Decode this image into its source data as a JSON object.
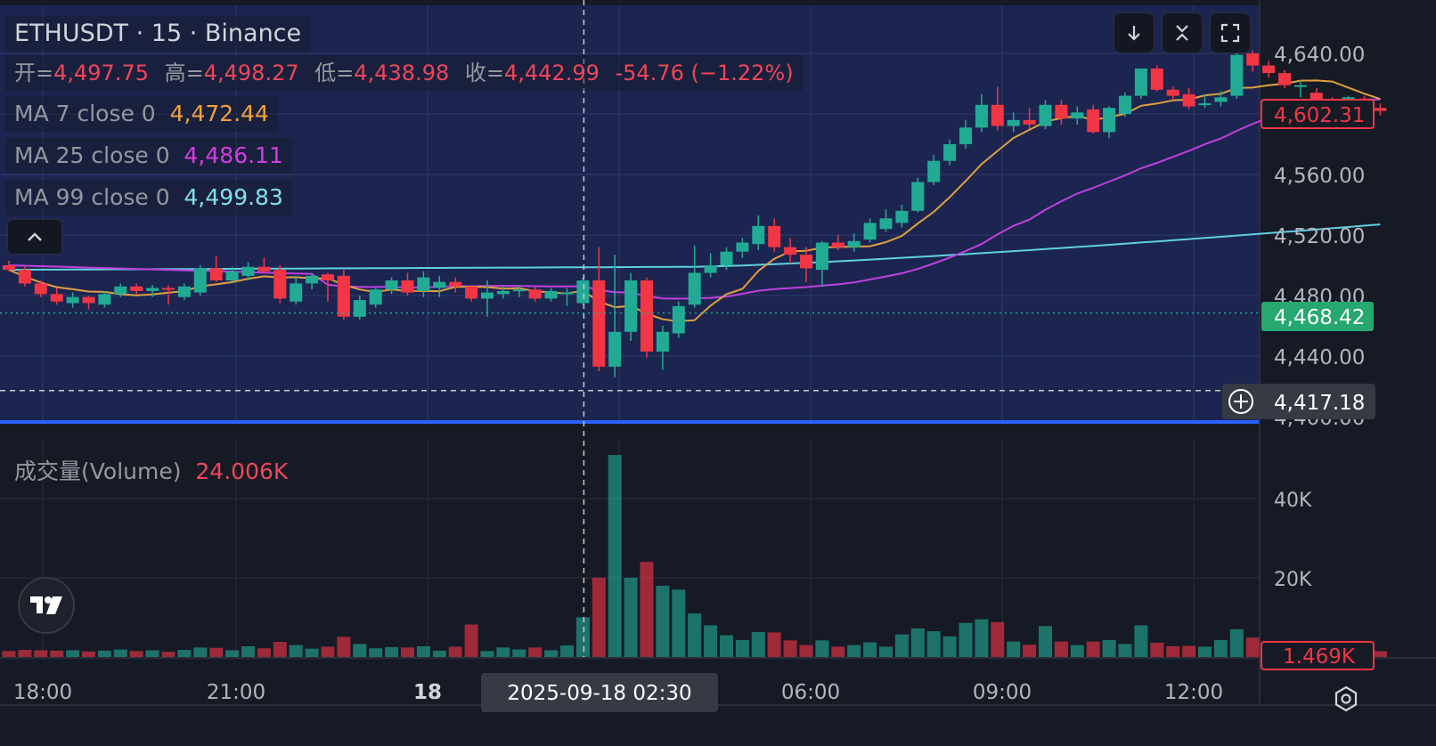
{
  "legend": {
    "title": "ETHUSDT · 15 · Binance",
    "open_label": "开=",
    "open": "4,497.75",
    "high_label": "高=",
    "high": "4,498.27",
    "low_label": "低=",
    "low": "4,438.98",
    "close_label": "收=",
    "close": "4,442.99",
    "change": "-54.76 (−1.22%)",
    "ma7_label": "MA 7 close 0",
    "ma7_value": "4,472.44",
    "ma25_label": "MA 25 close 0",
    "ma25_value": "4,486.11",
    "ma99_label": "MA 99 close 0",
    "ma99_value": "4,499.83"
  },
  "volume_pane": {
    "label": "成交量(Volume)",
    "value": "24.006K"
  },
  "price_axis": {
    "ticks": [
      "4,640.00",
      "4,560.00",
      "4,520.00",
      "4,480.00",
      "4,440.00",
      "4,400.00"
    ],
    "last_price": "4,602.31",
    "reference_price": "4,468.42",
    "crosshair_price": "4,417.18"
  },
  "volume_axis": {
    "ticks": [
      "40K",
      "20K"
    ],
    "last_volume": "1.469K"
  },
  "time_axis": {
    "ticks": [
      "18:00",
      "21:00",
      "18",
      "06:00",
      "09:00",
      "12:00"
    ],
    "crosshair_label": "2025-09-18   02:30"
  },
  "colors": {
    "up": "#22ab94",
    "down": "#f23645",
    "ma7": "#e0a040",
    "ma25": "#c040e0",
    "ma99": "#5fd0e0",
    "background": "#161a25",
    "plot_highlight": "#1c2550"
  },
  "chart_data": {
    "type": "candlestick",
    "symbol": "ETHUSDT",
    "interval": "15",
    "exchange": "Binance",
    "ylim": [
      4390,
      4660
    ],
    "volume_ylim": [
      0,
      52000
    ],
    "candles": [
      {
        "o": 4500,
        "h": 4503,
        "l": 4496,
        "c": 4497,
        "v": 1500
      },
      {
        "o": 4497,
        "h": 4499,
        "l": 4486,
        "c": 4488,
        "v": 1800
      },
      {
        "o": 4488,
        "h": 4490,
        "l": 4479,
        "c": 4481,
        "v": 1700
      },
      {
        "o": 4481,
        "h": 4485,
        "l": 4474,
        "c": 4476,
        "v": 1600
      },
      {
        "o": 4475,
        "h": 4482,
        "l": 4472,
        "c": 4479,
        "v": 1700
      },
      {
        "o": 4479,
        "h": 4480,
        "l": 4471,
        "c": 4475,
        "v": 1400
      },
      {
        "o": 4474,
        "h": 4483,
        "l": 4472,
        "c": 4481,
        "v": 1600
      },
      {
        "o": 4481,
        "h": 4488,
        "l": 4479,
        "c": 4486,
        "v": 1900
      },
      {
        "o": 4486,
        "h": 4488,
        "l": 4481,
        "c": 4483,
        "v": 1500
      },
      {
        "o": 4483,
        "h": 4487,
        "l": 4479,
        "c": 4485,
        "v": 1700
      },
      {
        "o": 4485,
        "h": 4487,
        "l": 4474,
        "c": 4484,
        "v": 1300
      },
      {
        "o": 4479,
        "h": 4488,
        "l": 4477,
        "c": 4486,
        "v": 1800
      },
      {
        "o": 4482,
        "h": 4500,
        "l": 4480,
        "c": 4498,
        "v": 2400
      },
      {
        "o": 4498,
        "h": 4506,
        "l": 4489,
        "c": 4490,
        "v": 2300
      },
      {
        "o": 4490,
        "h": 4499,
        "l": 4489,
        "c": 4496,
        "v": 1700
      },
      {
        "o": 4493,
        "h": 4502,
        "l": 4490,
        "c": 4499,
        "v": 2700
      },
      {
        "o": 4499,
        "h": 4505,
        "l": 4495,
        "c": 4496,
        "v": 2200
      },
      {
        "o": 4497,
        "h": 4500,
        "l": 4475,
        "c": 4478,
        "v": 3800
      },
      {
        "o": 4476,
        "h": 4493,
        "l": 4474,
        "c": 4488,
        "v": 3000
      },
      {
        "o": 4488,
        "h": 4495,
        "l": 4484,
        "c": 4493,
        "v": 2100
      },
      {
        "o": 4494,
        "h": 4495,
        "l": 4476,
        "c": 4490,
        "v": 2600
      },
      {
        "o": 4493,
        "h": 4497,
        "l": 4464,
        "c": 4466,
        "v": 5100
      },
      {
        "o": 4466,
        "h": 4480,
        "l": 4464,
        "c": 4477,
        "v": 3300
      },
      {
        "o": 4474,
        "h": 4486,
        "l": 4472,
        "c": 4484,
        "v": 2200
      },
      {
        "o": 4484,
        "h": 4492,
        "l": 4481,
        "c": 4490,
        "v": 2500
      },
      {
        "o": 4490,
        "h": 4495,
        "l": 4480,
        "c": 4482,
        "v": 2400
      },
      {
        "o": 4483,
        "h": 4496,
        "l": 4479,
        "c": 4492,
        "v": 2700
      },
      {
        "o": 4485,
        "h": 4493,
        "l": 4479,
        "c": 4489,
        "v": 1600
      },
      {
        "o": 4489,
        "h": 4492,
        "l": 4482,
        "c": 4486,
        "v": 2600
      },
      {
        "o": 4486,
        "h": 4487,
        "l": 4476,
        "c": 4478,
        "v": 8200
      },
      {
        "o": 4478,
        "h": 4490,
        "l": 4466,
        "c": 4482,
        "v": 1500
      },
      {
        "o": 4481,
        "h": 4486,
        "l": 4478,
        "c": 4483,
        "v": 2400
      },
      {
        "o": 4483,
        "h": 4487,
        "l": 4479,
        "c": 4484,
        "v": 1900
      },
      {
        "o": 4484,
        "h": 4486,
        "l": 4476,
        "c": 4478,
        "v": 2400
      },
      {
        "o": 4478,
        "h": 4485,
        "l": 4476,
        "c": 4483,
        "v": 1700
      },
      {
        "o": 4482,
        "h": 4485,
        "l": 4473,
        "c": 4482,
        "v": 2900
      },
      {
        "o": 4475,
        "h": 4492,
        "l": 4474,
        "c": 4490,
        "v": 10000
      },
      {
        "o": 4490,
        "h": 4512,
        "l": 4430,
        "c": 4433,
        "v": 20000
      },
      {
        "o": 4433,
        "h": 4507,
        "l": 4426,
        "c": 4456,
        "v": 51000
      },
      {
        "o": 4456,
        "h": 4495,
        "l": 4450,
        "c": 4490,
        "v": 20000
      },
      {
        "o": 4490,
        "h": 4492,
        "l": 4439,
        "c": 4443,
        "v": 24006
      },
      {
        "o": 4443,
        "h": 4460,
        "l": 4431,
        "c": 4456,
        "v": 18000
      },
      {
        "o": 4455,
        "h": 4476,
        "l": 4452,
        "c": 4473,
        "v": 17000
      },
      {
        "o": 4474,
        "h": 4513,
        "l": 4472,
        "c": 4495,
        "v": 11000
      },
      {
        "o": 4495,
        "h": 4508,
        "l": 4492,
        "c": 4500,
        "v": 8000
      },
      {
        "o": 4500,
        "h": 4512,
        "l": 4497,
        "c": 4509,
        "v": 5500
      },
      {
        "o": 4509,
        "h": 4518,
        "l": 4505,
        "c": 4515,
        "v": 4300
      },
      {
        "o": 4514,
        "h": 4533,
        "l": 4510,
        "c": 4526,
        "v": 6300
      },
      {
        "o": 4526,
        "h": 4531,
        "l": 4509,
        "c": 4512,
        "v": 6200
      },
      {
        "o": 4512,
        "h": 4518,
        "l": 4501,
        "c": 4507,
        "v": 4200
      },
      {
        "o": 4507,
        "h": 4512,
        "l": 4489,
        "c": 4498,
        "v": 3000
      },
      {
        "o": 4497,
        "h": 4516,
        "l": 4486,
        "c": 4515,
        "v": 4200
      },
      {
        "o": 4515,
        "h": 4520,
        "l": 4510,
        "c": 4512,
        "v": 2600
      },
      {
        "o": 4512,
        "h": 4521,
        "l": 4509,
        "c": 4516,
        "v": 3000
      },
      {
        "o": 4517,
        "h": 4531,
        "l": 4515,
        "c": 4528,
        "v": 3700
      },
      {
        "o": 4524,
        "h": 4537,
        "l": 4522,
        "c": 4531,
        "v": 2600
      },
      {
        "o": 4528,
        "h": 4540,
        "l": 4525,
        "c": 4536,
        "v": 5700
      },
      {
        "o": 4536,
        "h": 4558,
        "l": 4535,
        "c": 4555,
        "v": 7200
      },
      {
        "o": 4555,
        "h": 4573,
        "l": 4553,
        "c": 4569,
        "v": 6500
      },
      {
        "o": 4569,
        "h": 4583,
        "l": 4566,
        "c": 4580,
        "v": 5200
      },
      {
        "o": 4580,
        "h": 4596,
        "l": 4577,
        "c": 4591,
        "v": 8600
      },
      {
        "o": 4591,
        "h": 4613,
        "l": 4588,
        "c": 4606,
        "v": 9500
      },
      {
        "o": 4606,
        "h": 4618,
        "l": 4589,
        "c": 4592,
        "v": 8800
      },
      {
        "o": 4592,
        "h": 4601,
        "l": 4588,
        "c": 4596,
        "v": 3900
      },
      {
        "o": 4596,
        "h": 4604,
        "l": 4590,
        "c": 4593,
        "v": 3100
      },
      {
        "o": 4592,
        "h": 4609,
        "l": 4590,
        "c": 4606,
        "v": 7800
      },
      {
        "o": 4606,
        "h": 4609,
        "l": 4593,
        "c": 4597,
        "v": 3900
      },
      {
        "o": 4597,
        "h": 4605,
        "l": 4593,
        "c": 4601,
        "v": 3000
      },
      {
        "o": 4603,
        "h": 4606,
        "l": 4587,
        "c": 4588,
        "v": 3900
      },
      {
        "o": 4588,
        "h": 4605,
        "l": 4584,
        "c": 4604,
        "v": 4300
      },
      {
        "o": 4600,
        "h": 4614,
        "l": 4598,
        "c": 4612,
        "v": 3300
      },
      {
        "o": 4612,
        "h": 4630,
        "l": 4610,
        "c": 4630,
        "v": 8000
      },
      {
        "o": 4630,
        "h": 4632,
        "l": 4615,
        "c": 4616,
        "v": 3600
      },
      {
        "o": 4616,
        "h": 4618,
        "l": 4609,
        "c": 4612,
        "v": 2700
      },
      {
        "o": 4613,
        "h": 4617,
        "l": 4603,
        "c": 4605,
        "v": 2800
      },
      {
        "o": 4606,
        "h": 4613,
        "l": 4604,
        "c": 4607,
        "v": 2600
      },
      {
        "o": 4608,
        "h": 4615,
        "l": 4605,
        "c": 4611,
        "v": 4300
      },
      {
        "o": 4612,
        "h": 4642,
        "l": 4610,
        "c": 4639,
        "v": 7000
      },
      {
        "o": 4640,
        "h": 4642,
        "l": 4628,
        "c": 4632,
        "v": 4900
      },
      {
        "o": 4632,
        "h": 4635,
        "l": 4624,
        "c": 4627,
        "v": 3600
      },
      {
        "o": 4627,
        "h": 4629,
        "l": 4617,
        "c": 4619,
        "v": 3600
      },
      {
        "o": 4619,
        "h": 4622,
        "l": 4611,
        "c": 4619,
        "v": 2600
      },
      {
        "o": 4614,
        "h": 4617,
        "l": 4606,
        "c": 4608,
        "v": 3500
      },
      {
        "o": 4608,
        "h": 4611,
        "l": 4600,
        "c": 4606,
        "v": 2400
      },
      {
        "o": 4606,
        "h": 4612,
        "l": 4603,
        "c": 4611,
        "v": 3900
      },
      {
        "o": 4610,
        "h": 4612,
        "l": 4601,
        "c": 4604,
        "v": 2800
      },
      {
        "o": 4604,
        "h": 4607,
        "l": 4599,
        "c": 4602,
        "v": 1469
      }
    ],
    "ma_series": [
      {
        "name": "MA 7 close 0",
        "value": "4,472.44"
      },
      {
        "name": "MA 25 close 0",
        "value": "4,486.11"
      },
      {
        "name": "MA 99 close 0",
        "value": "4,499.83"
      }
    ],
    "price_ticks": [
      4640,
      4560,
      4520,
      4480,
      4440,
      4400
    ],
    "reference_price": 4468.42,
    "crosshair_price": 4417.18,
    "volume_ticks": [
      40000,
      20000
    ]
  }
}
